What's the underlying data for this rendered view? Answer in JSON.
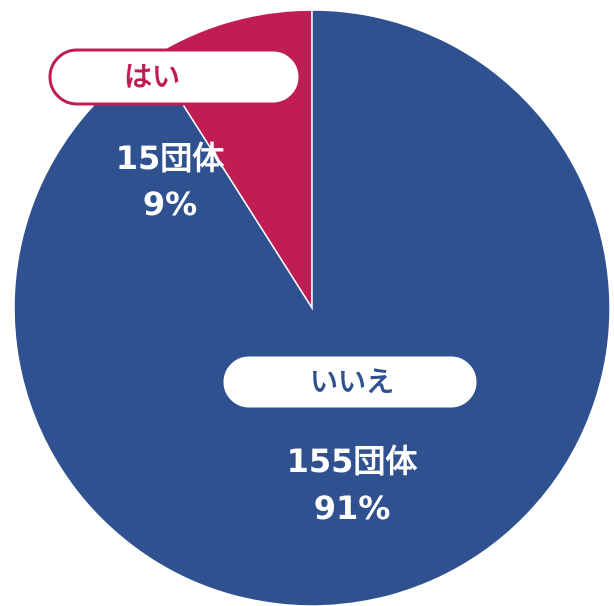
{
  "chart_data": {
    "type": "pie",
    "categories": [
      "はい",
      "いいえ"
    ],
    "values": [
      9,
      91
    ],
    "value_labels": [
      "9%",
      "91%"
    ],
    "count_labels": [
      "15団体",
      "155団体"
    ],
    "colors": [
      "#c01d55",
      "#2f5190"
    ]
  }
}
